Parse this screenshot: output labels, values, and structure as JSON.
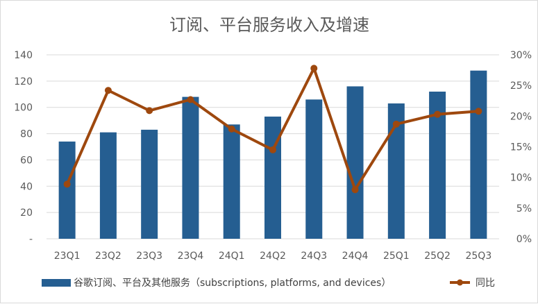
{
  "chart_data": {
    "type": "bar",
    "title": "订阅、平台服务收入及增速",
    "categories": [
      "23Q1",
      "23Q2",
      "23Q3",
      "23Q4",
      "24Q1",
      "24Q2",
      "24Q3",
      "24Q4",
      "25Q1",
      "25Q2",
      "25Q3"
    ],
    "series": [
      {
        "name": "谷歌订阅、平台及其他服务（subscriptions, platforms, and devices）",
        "type": "bar",
        "axis": "left",
        "color": "#255E91",
        "values": [
          74,
          81,
          83,
          108,
          87,
          93,
          106,
          116,
          103,
          112,
          128
        ]
      },
      {
        "name": "同比",
        "type": "line",
        "axis": "right",
        "color": "#9E480E",
        "values": [
          8.9,
          24.2,
          20.9,
          22.7,
          17.9,
          14.5,
          27.8,
          8.0,
          18.7,
          20.3,
          20.8
        ]
      }
    ],
    "left_axis": {
      "range": [
        0,
        140
      ],
      "ticks": [
        0,
        20,
        40,
        60,
        80,
        100,
        120,
        140
      ],
      "tick_labels": [
        "-",
        "20",
        "40",
        "60",
        "80",
        "100",
        "120",
        "140"
      ]
    },
    "right_axis": {
      "range": [
        0,
        30
      ],
      "ticks": [
        0,
        5,
        10,
        15,
        20,
        25,
        30
      ],
      "tick_labels": [
        "0%",
        "5%",
        "10%",
        "15%",
        "20%",
        "25%",
        "30%"
      ]
    },
    "grid": true,
    "legend": "bottom"
  }
}
